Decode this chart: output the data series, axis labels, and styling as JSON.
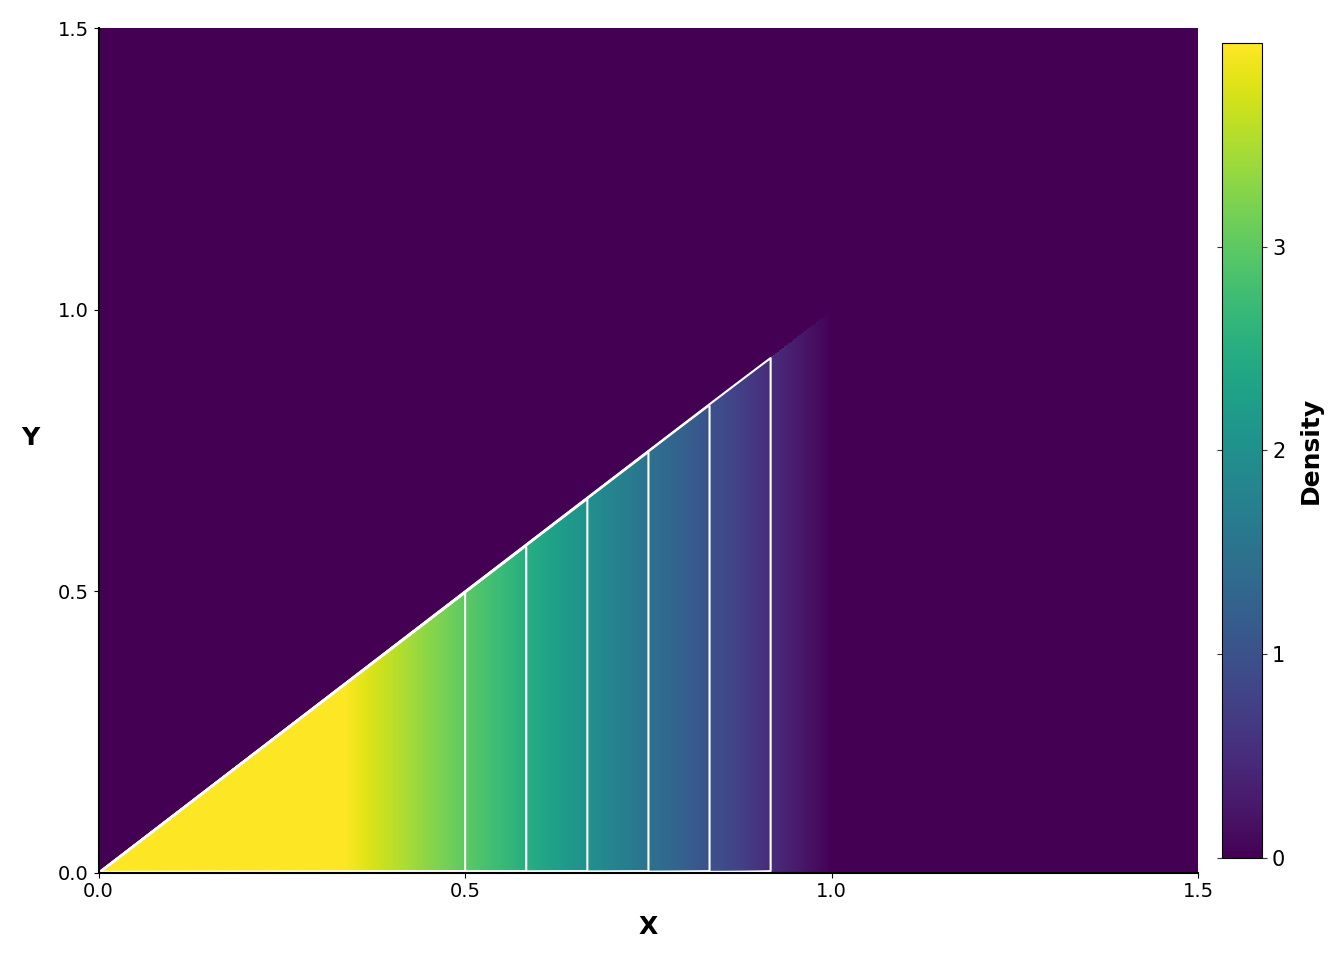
{
  "title": "",
  "xlabel": "X",
  "ylabel": "Y",
  "xlim": [
    0.0,
    1.5
  ],
  "ylim": [
    0.0,
    1.5
  ],
  "xticks": [
    0.0,
    0.5,
    1.0,
    1.5
  ],
  "yticks": [
    0.0,
    0.5,
    1.0,
    1.5
  ],
  "colorbar_label": "Density",
  "colorbar_ticks": [
    0,
    1,
    2,
    3
  ],
  "vmin": 0,
  "vmax": 4.0,
  "grid_resolution": 600,
  "background_color": "#ffffff",
  "contour_color": "white",
  "contour_levels": [
    0.5,
    1.0,
    1.5,
    2.0,
    2.5,
    3.0
  ],
  "pdf_formula": "6*(1-x) for 0 < y < x < 1",
  "plot_box_color": "#1a0a2e"
}
